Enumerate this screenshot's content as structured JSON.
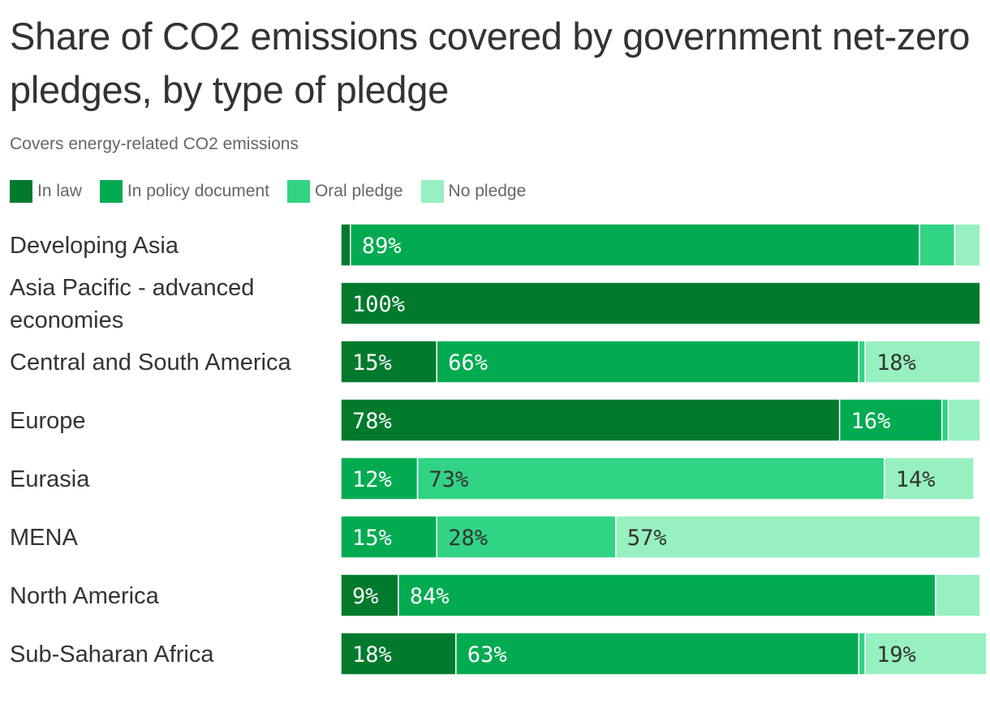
{
  "title": "Share of CO2 emissions covered by government net-zero pledges, by type of pledge",
  "subtitle": "Covers energy-related CO2 emissions",
  "colors": {
    "in_law": "#027a2d",
    "in_policy_document": "#02ab52",
    "oral_pledge": "#31d384",
    "no_pledge": "#97f0c0",
    "label_dark_text": "#ffffff",
    "label_light_text": "#333333"
  },
  "legend": [
    {
      "label": "In law",
      "color": "#027a2d"
    },
    {
      "label": "In policy document",
      "color": "#02ab52"
    },
    {
      "label": "Oral pledge",
      "color": "#31d384"
    },
    {
      "label": "No pledge",
      "color": "#97f0c0"
    }
  ],
  "chart_data": {
    "type": "bar",
    "orientation": "horizontal",
    "stacked": true,
    "xlim": [
      0,
      100
    ],
    "categories": [
      [
        "Developing Asia"
      ],
      [
        "Asia Pacific - advanced",
        "economies"
      ],
      [
        "Central and South America"
      ],
      [
        "Europe"
      ],
      [
        "Eurasia"
      ],
      [
        "MENA"
      ],
      [
        "North America"
      ],
      [
        "Sub-Saharan Africa"
      ]
    ],
    "series": [
      {
        "name": "In law",
        "color": "#027a2d",
        "values": [
          1.5,
          100,
          15,
          78,
          0,
          0,
          9,
          18
        ]
      },
      {
        "name": "In policy document",
        "color": "#02ab52",
        "values": [
          89,
          0,
          66,
          16,
          12,
          15,
          84,
          63
        ]
      },
      {
        "name": "Oral pledge",
        "color": "#31d384",
        "values": [
          5.5,
          0,
          1,
          1,
          73,
          28,
          0,
          1
        ]
      },
      {
        "name": "No pledge",
        "color": "#97f0c0",
        "values": [
          4,
          0,
          18,
          5,
          14,
          57,
          7,
          19
        ]
      }
    ],
    "data_labels": [
      [
        null,
        "89%",
        null,
        null
      ],
      [
        "100%",
        null,
        null,
        null
      ],
      [
        "15%",
        "66%",
        null,
        "18%"
      ],
      [
        "78%",
        "16%",
        null,
        null
      ],
      [
        null,
        "12%",
        "73%",
        "14%"
      ],
      [
        null,
        "15%",
        "28%",
        "57%"
      ],
      [
        "9%",
        "84%",
        null,
        null
      ],
      [
        "18%",
        "63%",
        null,
        "19%"
      ]
    ]
  }
}
